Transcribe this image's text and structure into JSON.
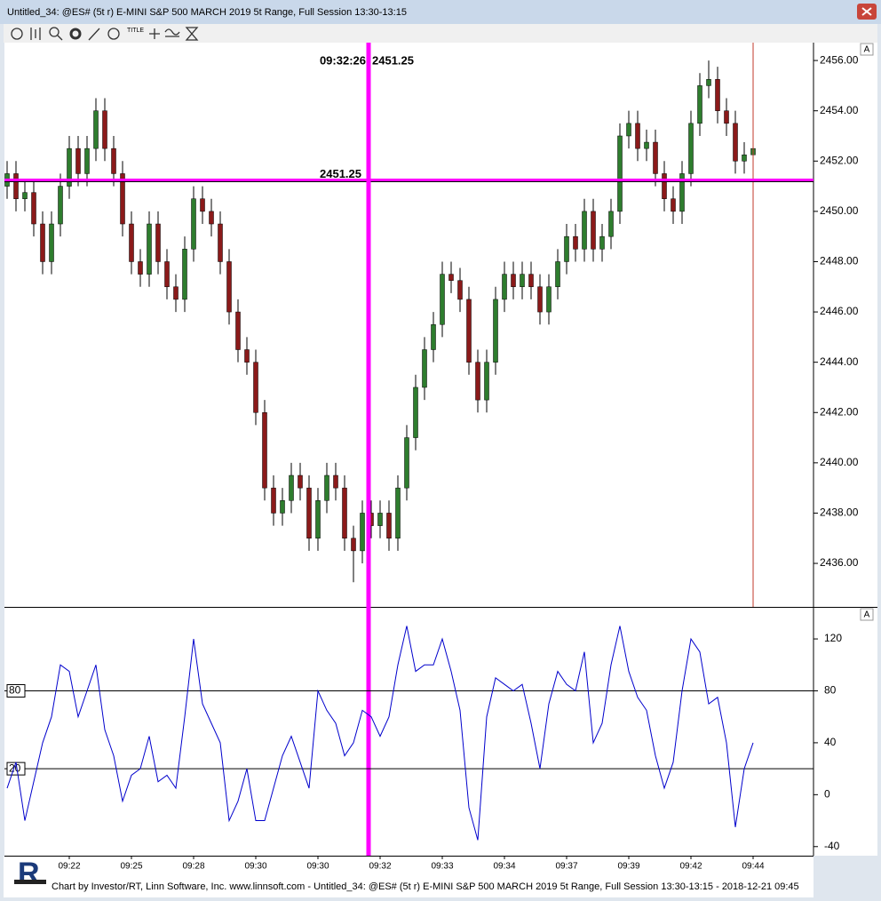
{
  "window": {
    "title": "Untitled_34: @ES# (5t r) E-MINI S&P 500 MARCH 2019 5t Range, Full Session 13:30-13:15",
    "toolbar_title_icon": "TITLE",
    "panel_button": "A",
    "footer": "Chart by Investor/RT, Linn Software, Inc. www.linnsoft.com - Untitled_34: @ES# (5t r) E-MINI S&P 500 MARCH 2019 5t Range, Full Session 13:30-13:15 - 2018-12-21 09:45"
  },
  "chart_data": [
    {
      "type": "candlestick",
      "up_color": "#2e7d2e",
      "down_color": "#8b1a1a",
      "crosshair": {
        "time": "09:32:26",
        "price": 2451.25,
        "color": "#ff00ff"
      },
      "ylim": [
        2434.27,
        2456.71
      ],
      "yticks": [
        {
          "value": 2436,
          "label": "2436.00"
        },
        {
          "value": 2438,
          "label": "2438.00"
        },
        {
          "value": 2440,
          "label": "2440.00"
        },
        {
          "value": 2442,
          "label": "2442.00"
        },
        {
          "value": 2444,
          "label": "2444.00"
        },
        {
          "value": 2446,
          "label": "2446.00"
        },
        {
          "value": 2448,
          "label": "2448.00"
        },
        {
          "value": 2450,
          "label": "2450.00"
        },
        {
          "value": 2452,
          "label": "2452.00"
        },
        {
          "value": 2454,
          "label": "2454.00"
        },
        {
          "value": 2456,
          "label": "2456.00"
        }
      ],
      "open": [
        2451,
        2451.5,
        2450.5,
        2450.75,
        2449.5,
        2448,
        2449.5,
        2451,
        2452.5,
        2451.5,
        2452.5,
        2454,
        2452.5,
        2451.5,
        2449.5,
        2448,
        2447.5,
        2449.5,
        2448,
        2447,
        2446.5,
        2448.5,
        2450.5,
        2450,
        2449.5,
        2448,
        2446,
        2444.5,
        2444,
        2442,
        2439,
        2438,
        2438.5,
        2439.5,
        2439,
        2437,
        2438.5,
        2439.5,
        2439,
        2437,
        2436.5,
        2438,
        2437.5,
        2438,
        2437,
        2439,
        2441,
        2443,
        2444.5,
        2445.5,
        2447.5,
        2447.25,
        2446.5,
        2444,
        2442.5,
        2444,
        2446.5,
        2447.5,
        2447,
        2447.5,
        2447,
        2446,
        2447,
        2448,
        2449,
        2448.5,
        2450,
        2448.5,
        2449,
        2450,
        2453,
        2453.5,
        2452.5,
        2452.75,
        2451.5,
        2450.5,
        2450,
        2451.5,
        2453.5,
        2455,
        2455.25,
        2454,
        2453.5,
        2452,
        2452.25
      ],
      "high": [
        2452,
        2452,
        2451.25,
        2451.25,
        2450,
        2450,
        2451.5,
        2453,
        2453,
        2453,
        2454.5,
        2454.5,
        2453,
        2452,
        2450,
        2448.5,
        2450,
        2450,
        2448.5,
        2447.5,
        2449,
        2451,
        2451,
        2450.5,
        2450,
        2448.5,
        2446.5,
        2445,
        2444.5,
        2442.5,
        2439.5,
        2439,
        2440,
        2440,
        2439.5,
        2439,
        2440,
        2440,
        2439.5,
        2437.5,
        2438.5,
        2438.5,
        2438.5,
        2438.5,
        2439.5,
        2441.5,
        2443.5,
        2445,
        2446,
        2448,
        2448,
        2447.75,
        2447,
        2444.5,
        2444.5,
        2447,
        2448,
        2448,
        2448,
        2448,
        2447.5,
        2447.5,
        2448.5,
        2449.5,
        2449.5,
        2450.5,
        2450.5,
        2449.5,
        2450.5,
        2453.5,
        2454,
        2454,
        2453.25,
        2453.25,
        2452,
        2451,
        2452,
        2454,
        2455.5,
        2456,
        2455.75,
        2454.5,
        2454,
        2452.75,
        2453
      ],
      "low": [
        2450.5,
        2450,
        2450,
        2449,
        2447.5,
        2447.5,
        2449,
        2450.5,
        2451,
        2451,
        2452,
        2452,
        2451,
        2449,
        2447.5,
        2447,
        2447,
        2447.5,
        2446.5,
        2446,
        2446,
        2448,
        2449.5,
        2449,
        2447.5,
        2445.5,
        2444,
        2443.5,
        2441.5,
        2438.5,
        2437.5,
        2437.5,
        2438,
        2438.5,
        2436.5,
        2436.5,
        2438,
        2438.5,
        2436.5,
        2435.25,
        2436,
        2437,
        2437,
        2436.5,
        2436.5,
        2438.5,
        2440.5,
        2442.5,
        2444,
        2445,
        2446.75,
        2446,
        2443.5,
        2442,
        2442,
        2443.5,
        2446,
        2446.5,
        2446.5,
        2446.5,
        2445.5,
        2445.5,
        2446.5,
        2447.5,
        2448,
        2448,
        2448,
        2448,
        2448.5,
        2449.5,
        2452.5,
        2452,
        2452,
        2451,
        2450,
        2449.5,
        2449.5,
        2451,
        2453,
        2454.5,
        2453.5,
        2453,
        2451.5,
        2451.5,
        2451.75
      ],
      "close": [
        2451.5,
        2450.5,
        2450.75,
        2449.5,
        2448,
        2449.5,
        2451,
        2452.5,
        2451.5,
        2452.5,
        2454,
        2452.5,
        2451.5,
        2449.5,
        2448,
        2447.5,
        2449.5,
        2448,
        2447,
        2446.5,
        2448.5,
        2450.5,
        2450,
        2449.5,
        2448,
        2446,
        2444.5,
        2444,
        2442,
        2439,
        2438,
        2438.5,
        2439.5,
        2439,
        2437,
        2438.5,
        2439.5,
        2439,
        2437,
        2436.5,
        2438,
        2437.5,
        2438,
        2437,
        2439,
        2441,
        2443,
        2444.5,
        2445.5,
        2447.5,
        2447.25,
        2446.5,
        2444,
        2442.5,
        2444,
        2446.5,
        2447.5,
        2447,
        2447.5,
        2447,
        2446,
        2447,
        2448,
        2449,
        2448.5,
        2450,
        2448.5,
        2449,
        2450,
        2453,
        2453.5,
        2452.5,
        2452.75,
        2451.5,
        2450.5,
        2450,
        2451.5,
        2453.5,
        2455,
        2455.25,
        2454,
        2453.5,
        2452,
        2452.25,
        2452.5
      ]
    },
    {
      "type": "line",
      "color": "#0000cc",
      "categories": [
        null,
        null,
        null,
        null,
        null,
        null,
        null,
        "09:22",
        null,
        null,
        null,
        null,
        null,
        null,
        "09:25",
        null,
        null,
        null,
        null,
        null,
        null,
        "09:28",
        null,
        null,
        null,
        null,
        null,
        null,
        "09:30",
        null,
        null,
        null,
        null,
        null,
        null,
        "09:30",
        null,
        null,
        null,
        null,
        null,
        null,
        "09:32",
        null,
        null,
        null,
        null,
        null,
        null,
        "09:33",
        null,
        null,
        null,
        null,
        null,
        null,
        "09:34",
        null,
        null,
        null,
        null,
        null,
        null,
        "09:37",
        null,
        null,
        null,
        null,
        null,
        null,
        "09:39",
        null,
        null,
        null,
        null,
        null,
        null,
        "09:42",
        null,
        null,
        null,
        null,
        null,
        null,
        "09:44"
      ],
      "values": [
        5,
        25,
        -20,
        10,
        40,
        60,
        100,
        95,
        60,
        80,
        100,
        50,
        30,
        -5,
        15,
        20,
        45,
        10,
        15,
        5,
        60,
        120,
        70,
        55,
        40,
        -20,
        -5,
        20,
        -20,
        -20,
        5,
        30,
        45,
        25,
        5,
        80,
        65,
        55,
        30,
        40,
        65,
        60,
        45,
        60,
        100,
        130,
        95,
        100,
        100,
        120,
        95,
        65,
        -10,
        -35,
        60,
        90,
        85,
        80,
        85,
        55,
        20,
        70,
        95,
        85,
        80,
        110,
        40,
        55,
        100,
        130,
        95,
        75,
        65,
        30,
        5,
        25,
        80,
        120,
        110,
        70,
        75,
        40,
        -25,
        20,
        40
      ],
      "reference_lines": [
        80,
        20
      ],
      "ylim": [
        -47,
        144
      ],
      "yticks": [
        -40,
        0,
        40,
        80,
        120
      ]
    }
  ]
}
